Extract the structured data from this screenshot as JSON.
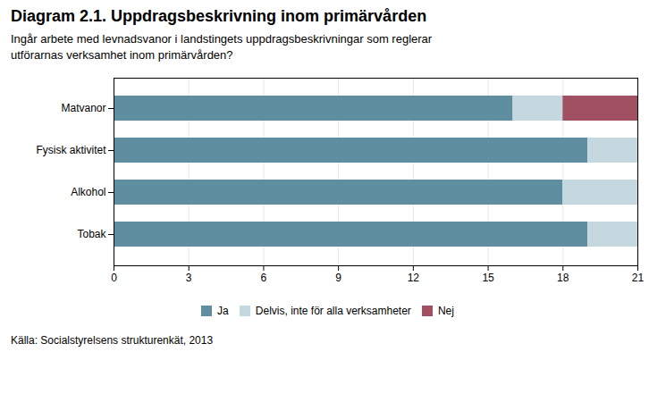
{
  "chart_data": {
    "type": "bar",
    "orientation": "horizontal",
    "stacked": true,
    "title": "Diagram 2.1. Uppdragsbeskrivning inom primärvården",
    "subtitle": "Ingår arbete med levnadsvanor i landstingets uppdragsbeskrivningar som reglerar\nutförarnas verksamhet inom primärvården?",
    "source": "Källa: Socialstyrelsens strukturenkät, 2013",
    "categories": [
      "Matvanor",
      "Fysisk aktivitet",
      "Alkohol",
      "Tobak"
    ],
    "series": [
      {
        "name": "Ja",
        "color": "#5f8ea0",
        "values": [
          16,
          19,
          18,
          19
        ]
      },
      {
        "name": "Delvis, inte för alla verksamheter",
        "color": "#c5d8e0",
        "values": [
          2,
          2,
          3,
          2
        ]
      },
      {
        "name": "Nej",
        "color": "#a05060",
        "values": [
          3,
          0,
          0,
          0
        ]
      }
    ],
    "xlim": [
      0,
      21
    ],
    "xticks": [
      0,
      3,
      6,
      9,
      12,
      15,
      18,
      21
    ],
    "grid": true,
    "legend": "bottom"
  }
}
